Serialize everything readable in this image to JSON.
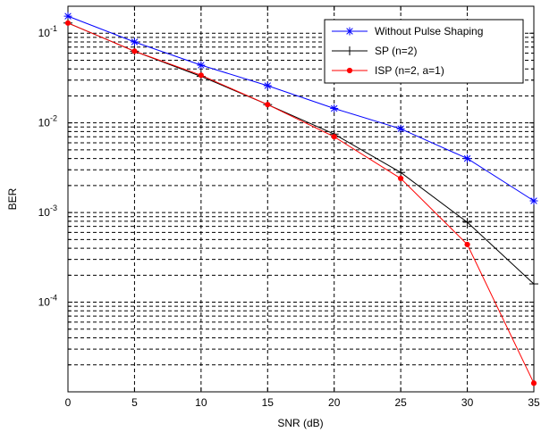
{
  "chart_data": {
    "type": "line",
    "title": "",
    "xlabel": "SNR (dB)",
    "ylabel": "BER",
    "x": [
      0,
      5,
      10,
      15,
      20,
      25,
      30,
      35
    ],
    "xlim": [
      0,
      35
    ],
    "xticks": [
      0,
      5,
      10,
      15,
      20,
      25,
      30,
      35
    ],
    "yscale": "log",
    "ylim": [
      1e-05,
      0.2
    ],
    "yticks": [
      {
        "value": 0.1,
        "base": "10",
        "exp": "-1"
      },
      {
        "value": 0.01,
        "base": "10",
        "exp": "-2"
      },
      {
        "value": 0.001,
        "base": "10",
        "exp": "-3"
      },
      {
        "value": 0.0001,
        "base": "10",
        "exp": "-4"
      }
    ],
    "grid": true,
    "legend_position": "top-right",
    "series": [
      {
        "name": "Without Pulse Shaping",
        "color": "#0000ff",
        "marker": "asterisk",
        "values": [
          0.155,
          0.08,
          0.044,
          0.026,
          0.0145,
          0.0086,
          0.004,
          0.00135
        ]
      },
      {
        "name": "SP (n=2)",
        "color": "#000000",
        "marker": "plus",
        "values": [
          0.13,
          0.063,
          0.033,
          0.016,
          0.0075,
          0.0028,
          0.00078,
          0.00016
        ]
      },
      {
        "name": "ISP (n=2, a=1)",
        "color": "#ff0000",
        "marker": "dot",
        "values": [
          0.13,
          0.063,
          0.034,
          0.016,
          0.007,
          0.0024,
          0.00044,
          1.25e-05
        ]
      }
    ]
  }
}
